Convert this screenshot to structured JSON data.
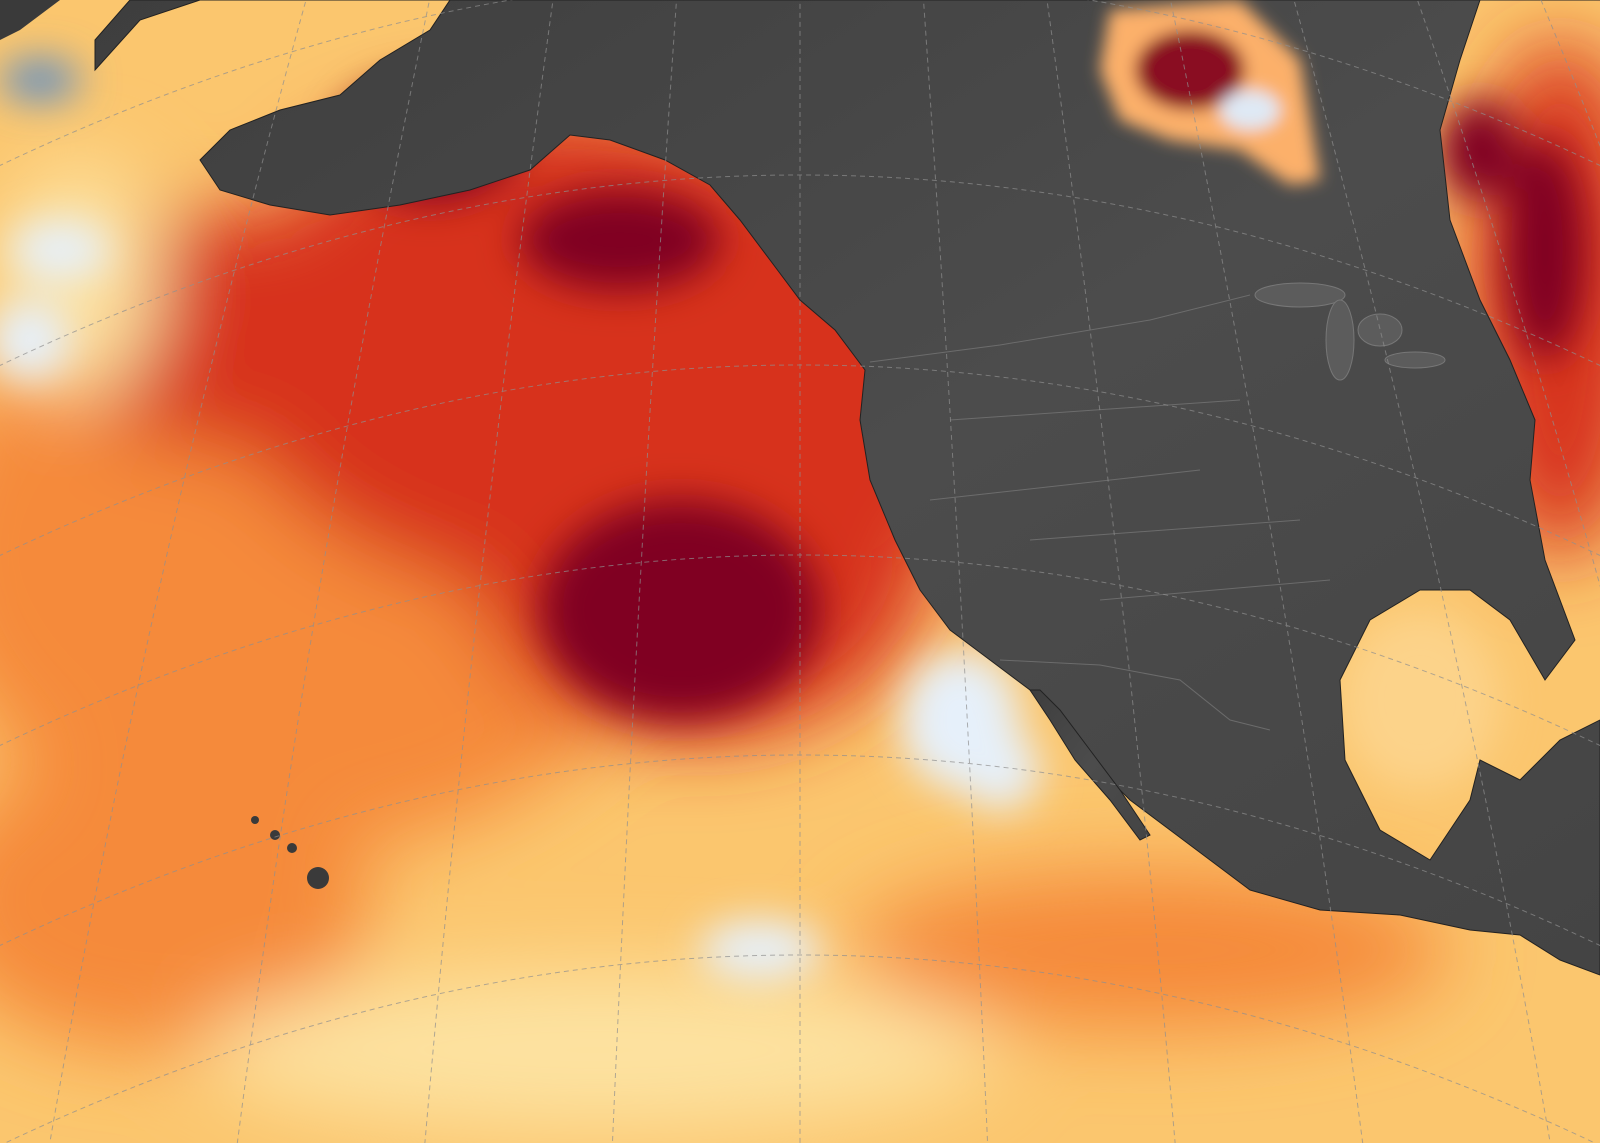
{
  "map": {
    "subject": "sea-surface-temperature-anomaly",
    "colors": {
      "ocean_base": "#fbc66e",
      "warm_light": "#fde2a0",
      "warm_orange": "#f58a3a",
      "warm_red": "#d7301f",
      "warm_dark": "#800020",
      "cool_light": "#e6f0fa",
      "cool_blue": "#5a8cc8",
      "land": "#4a4a4a",
      "land_border": "#6a6a6a",
      "graticule": "#9a9a9a"
    },
    "layers": [
      "ocean-anomaly",
      "land-relief",
      "graticule",
      "political-borders"
    ]
  }
}
